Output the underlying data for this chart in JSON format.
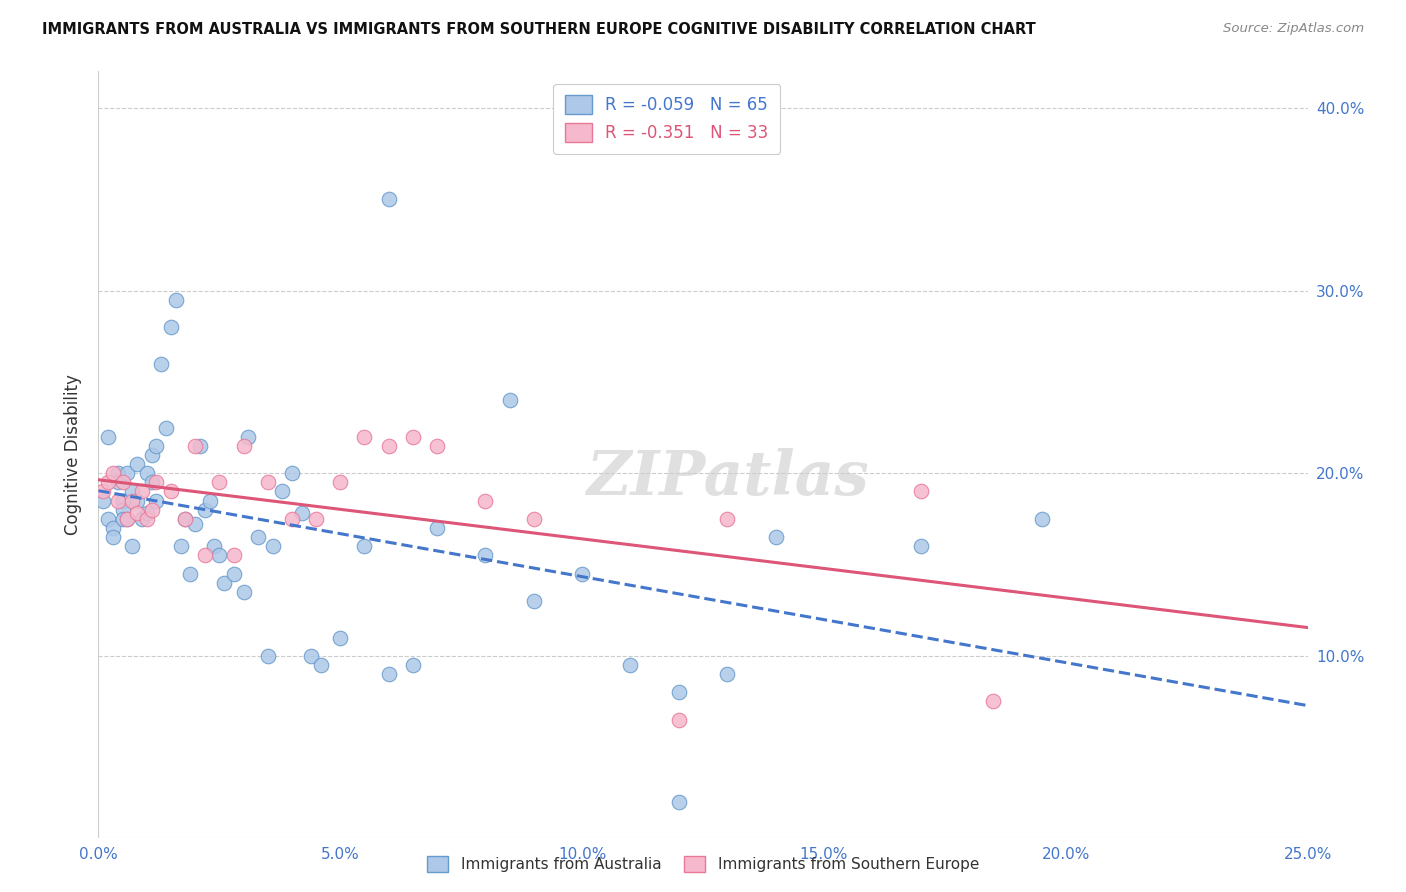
{
  "title": "IMMIGRANTS FROM AUSTRALIA VS IMMIGRANTS FROM SOUTHERN EUROPE COGNITIVE DISABILITY CORRELATION CHART",
  "source": "Source: ZipAtlas.com",
  "ylabel": "Cognitive Disability",
  "xlim": [
    0.0,
    0.25
  ],
  "ylim": [
    0.0,
    0.42
  ],
  "xticks": [
    0.0,
    0.05,
    0.1,
    0.15,
    0.2,
    0.25
  ],
  "yticks": [
    0.1,
    0.2,
    0.3,
    0.4
  ],
  "xticklabels": [
    "0.0%",
    "5.0%",
    "10.0%",
    "15.0%",
    "20.0%",
    "25.0%"
  ],
  "yticklabels_right": [
    "10.0%",
    "20.0%",
    "30.0%",
    "40.0%"
  ],
  "R_blue": -0.059,
  "N_blue": 65,
  "R_pink": -0.351,
  "N_pink": 33,
  "blue_scatter_color": "#adc8e8",
  "blue_edge_color": "#6699cc",
  "pink_scatter_color": "#f5b8cc",
  "pink_edge_color": "#e87898",
  "blue_line_color": "#4477cc",
  "pink_line_color": "#dd5577",
  "legend_label_blue": "Immigrants from Australia",
  "legend_label_pink": "Immigrants from Southern Europe",
  "watermark": "ZIPatlas",
  "blue_x": [
    0.001,
    0.002,
    0.002,
    0.003,
    0.003,
    0.004,
    0.004,
    0.005,
    0.005,
    0.005,
    0.006,
    0.006,
    0.007,
    0.007,
    0.008,
    0.008,
    0.009,
    0.01,
    0.01,
    0.011,
    0.011,
    0.012,
    0.012,
    0.013,
    0.014,
    0.015,
    0.016,
    0.017,
    0.018,
    0.019,
    0.02,
    0.021,
    0.022,
    0.023,
    0.024,
    0.025,
    0.026,
    0.028,
    0.03,
    0.031,
    0.033,
    0.035,
    0.036,
    0.038,
    0.04,
    0.042,
    0.044,
    0.046,
    0.05,
    0.055,
    0.06,
    0.065,
    0.07,
    0.08,
    0.085,
    0.09,
    0.1,
    0.11,
    0.12,
    0.13,
    0.14,
    0.17,
    0.195,
    0.12,
    0.06
  ],
  "blue_y": [
    0.185,
    0.175,
    0.22,
    0.17,
    0.165,
    0.2,
    0.195,
    0.185,
    0.18,
    0.175,
    0.2,
    0.175,
    0.19,
    0.16,
    0.205,
    0.185,
    0.175,
    0.2,
    0.178,
    0.21,
    0.195,
    0.215,
    0.185,
    0.26,
    0.225,
    0.28,
    0.295,
    0.16,
    0.175,
    0.145,
    0.172,
    0.215,
    0.18,
    0.185,
    0.16,
    0.155,
    0.14,
    0.145,
    0.135,
    0.22,
    0.165,
    0.1,
    0.16,
    0.19,
    0.2,
    0.178,
    0.1,
    0.095,
    0.11,
    0.16,
    0.35,
    0.095,
    0.17,
    0.155,
    0.24,
    0.13,
    0.145,
    0.095,
    0.02,
    0.09,
    0.165,
    0.16,
    0.175,
    0.08,
    0.09
  ],
  "pink_x": [
    0.001,
    0.002,
    0.003,
    0.004,
    0.005,
    0.006,
    0.007,
    0.008,
    0.009,
    0.01,
    0.011,
    0.012,
    0.015,
    0.018,
    0.02,
    0.022,
    0.025,
    0.028,
    0.03,
    0.035,
    0.04,
    0.045,
    0.05,
    0.055,
    0.06,
    0.065,
    0.07,
    0.08,
    0.09,
    0.13,
    0.17,
    0.185,
    0.12
  ],
  "pink_y": [
    0.19,
    0.195,
    0.2,
    0.185,
    0.195,
    0.175,
    0.185,
    0.178,
    0.19,
    0.175,
    0.18,
    0.195,
    0.19,
    0.175,
    0.215,
    0.155,
    0.195,
    0.155,
    0.215,
    0.195,
    0.175,
    0.175,
    0.195,
    0.22,
    0.215,
    0.22,
    0.215,
    0.185,
    0.175,
    0.175,
    0.19,
    0.075,
    0.065
  ]
}
